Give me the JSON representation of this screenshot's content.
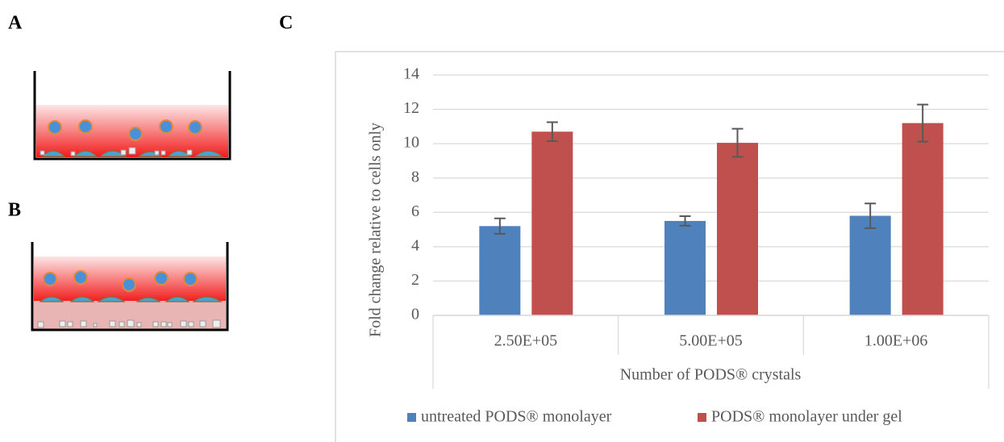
{
  "panel_labels": {
    "a": "A",
    "b": "B",
    "c": "C"
  },
  "chart_data": {
    "type": "bar",
    "categories": [
      "2.50E+05",
      "5.00E+05",
      "1.00E+06"
    ],
    "series": [
      {
        "name": "untreated PODS® monolayer",
        "color": "#4f81bd",
        "values": [
          5.2,
          5.5,
          5.8
        ],
        "errors": [
          0.45,
          0.28,
          0.72
        ]
      },
      {
        "name": "PODS® monolayer under gel",
        "color": "#c0504d",
        "values": [
          10.7,
          10.05,
          11.2
        ],
        "errors": [
          0.55,
          0.82,
          1.08
        ]
      }
    ],
    "xlabel": "Number of PODS® crystals",
    "ylabel": "Fold change relative to cells only",
    "ylim": [
      0,
      14
    ],
    "yticks": [
      0,
      2,
      4,
      6,
      8,
      10,
      12,
      14
    ],
    "grid": true,
    "legend": "bottom"
  }
}
